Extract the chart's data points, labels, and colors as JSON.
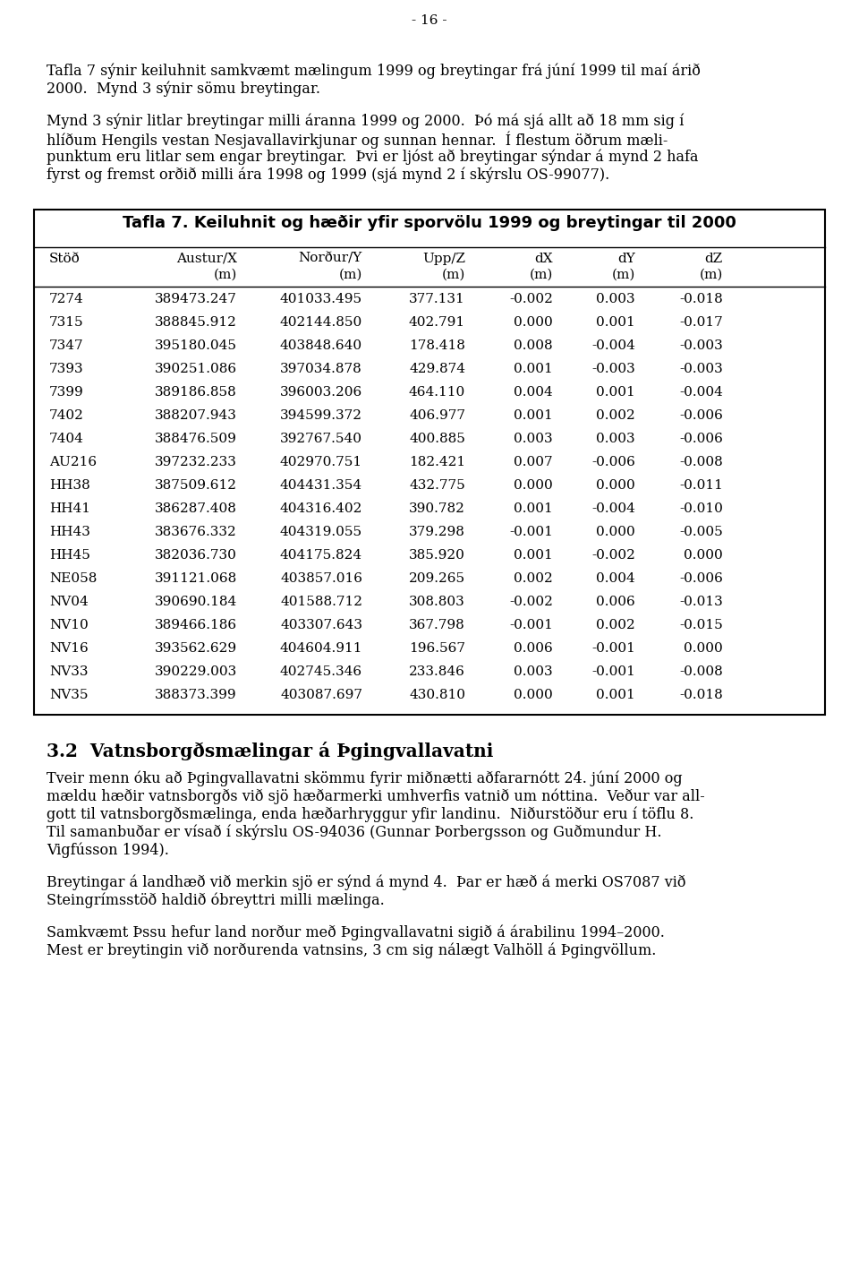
{
  "page_number": "- 16 -",
  "para1_lines": [
    "Tafla 7 sýnir keiluhnit samkvæmt mælingum 1999 og breytingar frá júní 1999 til maí árið",
    "2000.  Mynd 3 sýnir sömu breytingar."
  ],
  "para2_lines": [
    "Mynd 3 sýnir litlar breytingar milli áranna 1999 og 2000.  Þó má sjá allt að 18 mm sig í",
    "hlíðum Hengils vestan Nesjavallavirkjunar og sunnan hennar.  Í flestum öðrum mæli-",
    "punktum eru litlar sem engar breytingar.  Þvi er ljóst að breytingar sýndar á mynd 2 hafa",
    "fyrst og fremst orðið milli ára 1998 og 1999 (sjá mynd 2 í skýrslu OS-99077)."
  ],
  "table_title": "Tafla 7. Keiluhnit og hæðir yfir sporvölu 1999 og breytingar til 2000",
  "col_header1": [
    "Stöð",
    "Austur/X",
    "Norður/Y",
    "Upp/Z",
    "dX",
    "dY",
    "dZ"
  ],
  "col_header2": [
    "",
    "(m)",
    "(m)",
    "(m)",
    "(m)",
    "(m)",
    "(m)"
  ],
  "table_data": [
    [
      "7274",
      "389473.247",
      "401033.495",
      "377.131",
      "-0.002",
      "0.003",
      "-0.018"
    ],
    [
      "7315",
      "388845.912",
      "402144.850",
      "402.791",
      "0.000",
      "0.001",
      "-0.017"
    ],
    [
      "7347",
      "395180.045",
      "403848.640",
      "178.418",
      "0.008",
      "-0.004",
      "-0.003"
    ],
    [
      "7393",
      "390251.086",
      "397034.878",
      "429.874",
      "0.001",
      "-0.003",
      "-0.003"
    ],
    [
      "7399",
      "389186.858",
      "396003.206",
      "464.110",
      "0.004",
      "0.001",
      "-0.004"
    ],
    [
      "7402",
      "388207.943",
      "394599.372",
      "406.977",
      "0.001",
      "0.002",
      "-0.006"
    ],
    [
      "7404",
      "388476.509",
      "392767.540",
      "400.885",
      "0.003",
      "0.003",
      "-0.006"
    ],
    [
      "AU216",
      "397232.233",
      "402970.751",
      "182.421",
      "0.007",
      "-0.006",
      "-0.008"
    ],
    [
      "HH38",
      "387509.612",
      "404431.354",
      "432.775",
      "0.000",
      "0.000",
      "-0.011"
    ],
    [
      "HH41",
      "386287.408",
      "404316.402",
      "390.782",
      "0.001",
      "-0.004",
      "-0.010"
    ],
    [
      "HH43",
      "383676.332",
      "404319.055",
      "379.298",
      "-0.001",
      "0.000",
      "-0.005"
    ],
    [
      "HH45",
      "382036.730",
      "404175.824",
      "385.920",
      "0.001",
      "-0.002",
      "0.000"
    ],
    [
      "NE058",
      "391121.068",
      "403857.016",
      "209.265",
      "0.002",
      "0.004",
      "-0.006"
    ],
    [
      "NV04",
      "390690.184",
      "401588.712",
      "308.803",
      "-0.002",
      "0.006",
      "-0.013"
    ],
    [
      "NV10",
      "389466.186",
      "403307.643",
      "367.798",
      "-0.001",
      "0.002",
      "-0.015"
    ],
    [
      "NV16",
      "393562.629",
      "404604.911",
      "196.567",
      "0.006",
      "-0.001",
      "0.000"
    ],
    [
      "NV33",
      "390229.003",
      "402745.346",
      "233.846",
      "0.003",
      "-0.001",
      "-0.008"
    ],
    [
      "NV35",
      "388373.399",
      "403087.697",
      "430.810",
      "0.000",
      "0.001",
      "-0.018"
    ]
  ],
  "section_title": "3.2  Vatnsborgðsmælingar á Þgingvallavatni",
  "para3_lines": [
    "Tveir menn óku að Þgingvallavatni skömmu fyrir miðnætti aðfararnótt 24. júní 2000 og",
    "mældu hæðir vatnsborgðs við sjö hæðarmerki umhverfis vatnið um nóttina.  Veður var all-",
    "gott til vatnsborgðsmælinga, enda hæðarhryggur yfir landinu.  Niðurstöður eru í töflu 8.",
    "Til samanbuðar er vísað í skýrslu OS-94036 (Gunnar Þorbergsson og Guðmundur H.",
    "Vigfússon 1994)."
  ],
  "para4_lines": [
    "Breytingar á landhæð við merkin sjö er sýnd á mynd 4.  Þar er hæð á merki OS7087 við",
    "Steingrímsstöð haldið óbreyttri milli mælinga."
  ],
  "para5_lines": [
    "Samkvæmt Þssu hefur land norður með Þgingvallavatni sigið á árabilinu 1994–2000.",
    "Mest er breytingin við norðurenda vatnsins, 3 cm sig nálægt Valhöll á Þgingvöllum."
  ],
  "bg_color": "#ffffff",
  "body_fontsize": 11.5,
  "table_fontsize": 11.0,
  "table_title_fontsize": 13.0,
  "section_fontsize": 14.5
}
